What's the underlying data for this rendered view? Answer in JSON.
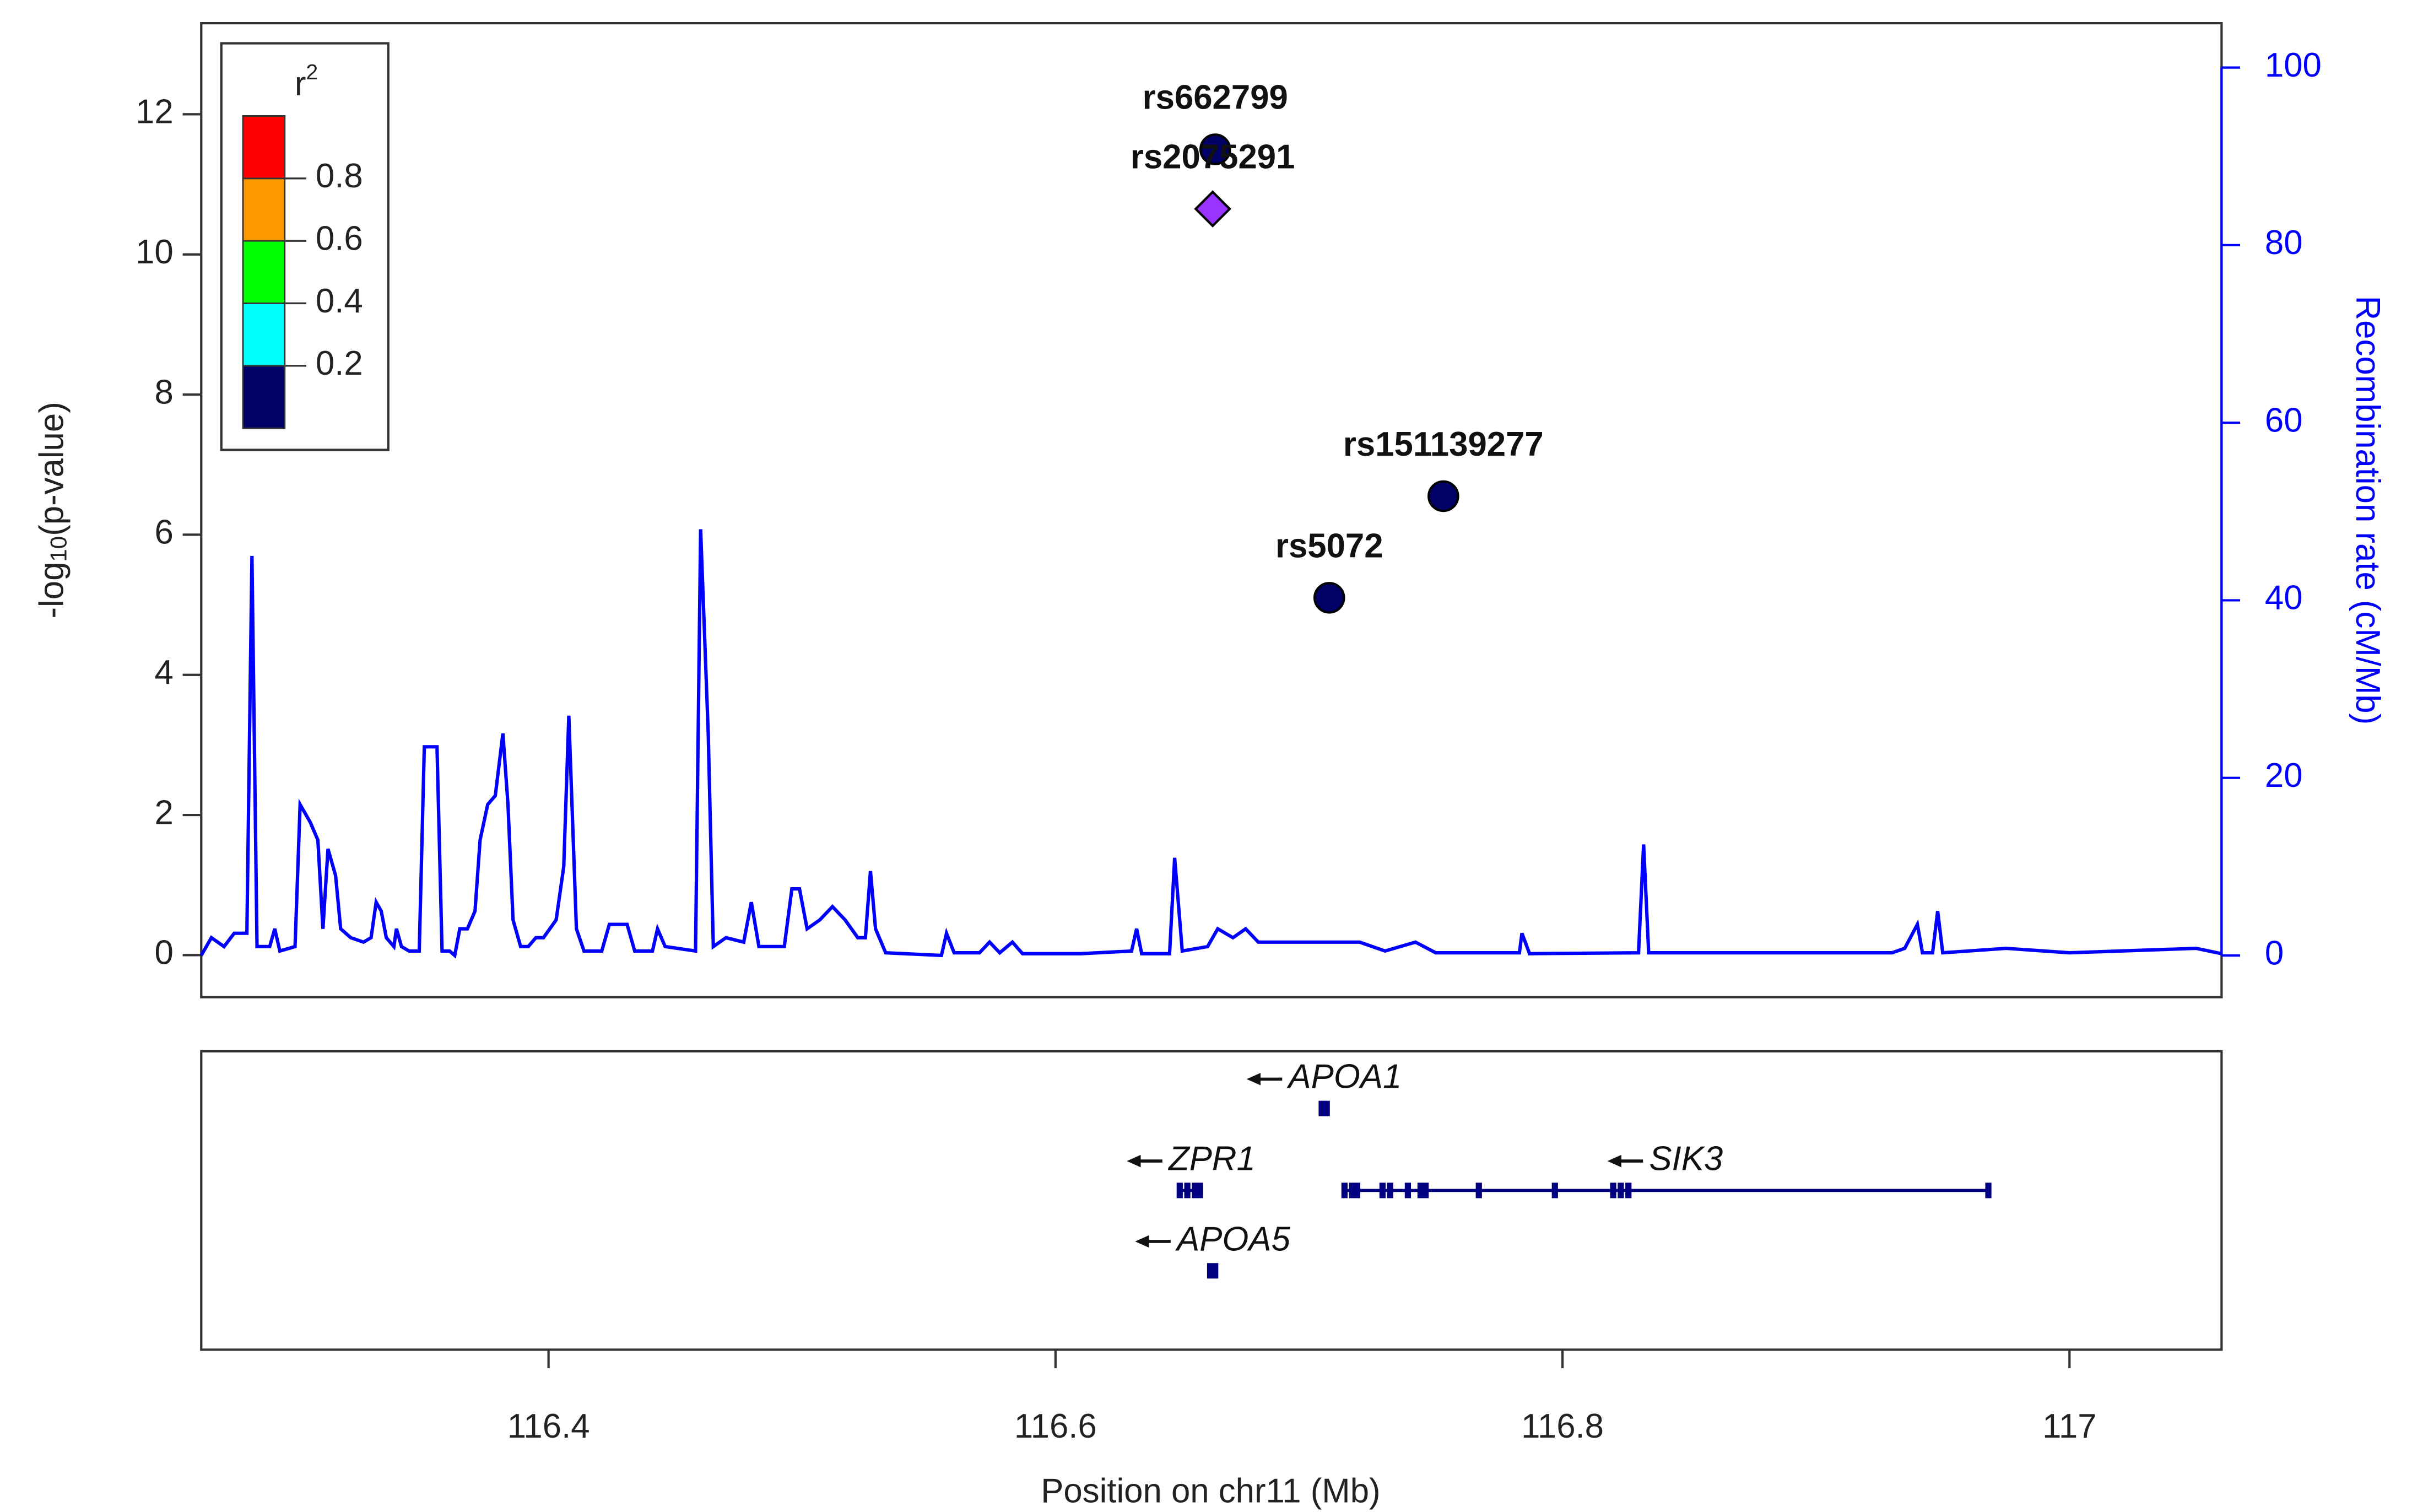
{
  "chart_data": {
    "type": "scatter",
    "ylabel_parts": [
      "-log",
      "10",
      "(p-value)"
    ],
    "y2label": "Recombination rate (cM/Mb)",
    "xlabel": "Position on chr11 (Mb)",
    "xlim": [
      116.263,
      117.06
    ],
    "xticks": [
      116.4,
      116.6,
      116.8,
      {
        "value": 117,
        "label": "117"
      }
    ],
    "ylim": [
      -0.6,
      13.3
    ],
    "yticks": [
      0,
      2,
      4,
      6,
      8,
      10,
      12
    ],
    "y2lim": [
      -4.7,
      105
    ],
    "y2ticks": [
      0,
      20,
      40,
      60,
      80,
      100
    ],
    "y2color": "#0000ff",
    "points": [
      {
        "label": "rs662799",
        "x": 116.663,
        "y": 11.5,
        "color": "#000066",
        "shape": "circle"
      },
      {
        "label": "rs2075291",
        "x": 116.662,
        "y": 10.65,
        "color": "#9933ff",
        "shape": "diamond"
      },
      {
        "label": "rs151139277",
        "x": 116.753,
        "y": 6.55,
        "color": "#000066",
        "shape": "circle"
      },
      {
        "label": "rs5072",
        "x": 116.708,
        "y": 5.1,
        "color": "#000066",
        "shape": "circle"
      }
    ],
    "recomb": {
      "axis": "y2",
      "color": "#0000ff",
      "x": [
        116.263,
        116.267,
        116.272,
        116.276,
        116.281,
        116.283,
        116.285,
        116.29,
        116.292,
        116.294,
        116.3,
        116.302,
        116.306,
        116.309,
        116.311,
        116.313,
        116.316,
        116.318,
        116.322,
        116.327,
        116.33,
        116.332,
        116.334,
        116.336,
        116.339,
        116.34,
        116.342,
        116.345,
        116.349,
        116.351,
        116.356,
        116.358,
        116.361,
        116.363,
        116.365,
        116.368,
        116.371,
        116.373,
        116.376,
        116.379,
        116.382,
        116.384,
        116.386,
        116.389,
        116.392,
        116.395,
        116.398,
        116.403,
        116.406,
        116.408,
        116.411,
        116.414,
        116.421,
        116.424,
        116.431,
        116.434,
        116.441,
        116.443,
        116.446,
        116.458,
        116.46,
        116.463,
        116.465,
        116.47,
        116.477,
        116.48,
        116.483,
        116.493,
        116.496,
        116.499,
        116.502,
        116.507,
        116.512,
        116.517,
        116.522,
        116.525,
        116.527,
        116.529,
        116.533,
        116.555,
        116.557,
        116.56,
        116.57,
        116.574,
        116.578,
        116.583,
        116.587,
        116.61,
        116.63,
        116.632,
        116.634,
        116.645,
        116.647,
        116.65,
        116.66,
        116.664,
        116.67,
        116.675,
        116.68,
        116.72,
        116.73,
        116.742,
        116.75,
        116.783,
        116.784,
        116.787,
        116.83,
        116.832,
        116.834,
        116.85,
        116.93,
        116.935,
        116.94,
        116.942,
        116.946,
        116.948,
        116.95,
        116.975,
        117.0,
        117.05,
        117.06
      ],
      "values": [
        0,
        2,
        1,
        2.5,
        2.5,
        45,
        1,
        1,
        3,
        0.5,
        1,
        17,
        15,
        13,
        3,
        12,
        9,
        3,
        2,
        1.5,
        2,
        6,
        5,
        2,
        1,
        3,
        1,
        0.5,
        0.5,
        23.5,
        23.5,
        0.5,
        0.5,
        0,
        3,
        3,
        5,
        13,
        17,
        18,
        25,
        17,
        4,
        1,
        1,
        2,
        2,
        4,
        10,
        27,
        3,
        0.5,
        0.5,
        3.5,
        3.5,
        0.5,
        0.5,
        3,
        1,
        0.5,
        48,
        25,
        1,
        2,
        1.5,
        6,
        1,
        1,
        7.5,
        7.5,
        3,
        4,
        5.5,
        4,
        2,
        2,
        9.5,
        3,
        0.3,
        0,
        2.5,
        0.3,
        0.3,
        1.5,
        0.3,
        1.5,
        0.2,
        0.2,
        0.5,
        3,
        0.2,
        0.2,
        11,
        0.5,
        1,
        3,
        2,
        3,
        1.5,
        1.5,
        0.5,
        1.5,
        0.3,
        0.3,
        2.5,
        0.2,
        0.3,
        12.5,
        0.3,
        0.3,
        0.3,
        0.8,
        3.5,
        0.3,
        0.3,
        5,
        0.3,
        0.8,
        0.3,
        0.8,
        0.2
      ]
    },
    "legend": {
      "title": "r",
      "title_sup": "2",
      "range": [
        0,
        1
      ],
      "colors": [
        "#000066",
        "#00ffff",
        "#00ff00",
        "#ff9900",
        "#ff0000"
      ],
      "ticks": [
        0.2,
        0.4,
        0.6,
        0.8
      ]
    },
    "genes": [
      {
        "name": "APOA1",
        "start": 116.705,
        "end": 116.707,
        "color": "#000080"
      },
      {
        "name": "ZPR1",
        "start": 116.649,
        "end": 116.658,
        "color": "#000080",
        "exons": [
          116.649,
          116.652,
          116.655,
          116.657
        ]
      },
      {
        "name": "SIK3",
        "start": 116.713,
        "end": 116.968,
        "color": "#000080",
        "exons": [
          116.714,
          116.717,
          116.719,
          116.729,
          116.732,
          116.739,
          116.744,
          116.746,
          116.767,
          116.797,
          116.82,
          116.823,
          116.826,
          116.968
        ]
      },
      {
        "name": "APOA5",
        "start": 116.661,
        "end": 116.663,
        "color": "#000080"
      }
    ]
  }
}
